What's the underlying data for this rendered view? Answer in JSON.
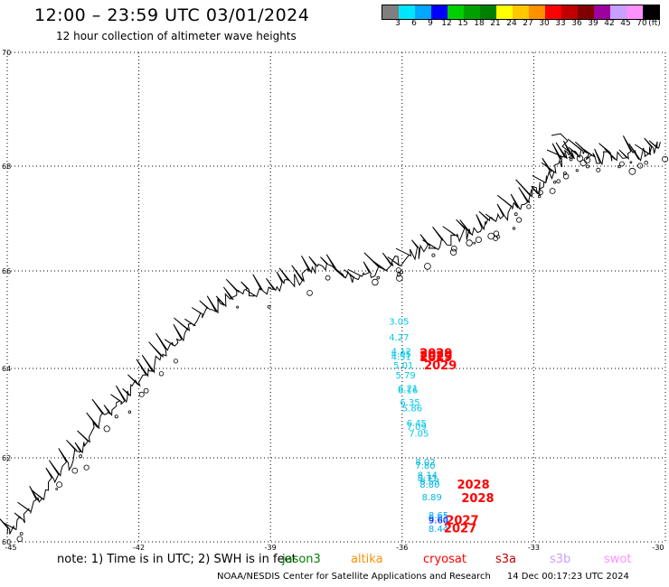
{
  "header": {
    "title": "12:00 – 23:59 UTC 03/01/2024",
    "subtitle": "12 hour collection of altimeter wave heights"
  },
  "color_scale": {
    "colors": [
      "#7f7f7f",
      "#00e5ff",
      "#00a8ff",
      "#0000ff",
      "#00d000",
      "#00a000",
      "#008000",
      "#ffff00",
      "#ffc800",
      "#ff9000",
      "#ff0000",
      "#c00000",
      "#800000",
      "#a000a0",
      "#c8a0ff",
      "#ff90ff",
      "#000000"
    ],
    "labels": [
      "3",
      "6",
      "9",
      "12",
      "15",
      "18",
      "21",
      "24",
      "27",
      "30",
      "33",
      "36",
      "39",
      "42",
      "45",
      "70",
      "(ft)"
    ]
  },
  "map": {
    "lat_labels": [
      "70",
      "68",
      "66",
      "64",
      "62",
      "60"
    ],
    "lon_labels": [
      "-45",
      "-42",
      "-39",
      "-36",
      "-33",
      "-30"
    ],
    "coast_color": "#000000",
    "observations": [
      {
        "text": "3.05",
        "lon": -36.3,
        "lat": 64.9,
        "color": "#00c8e8"
      },
      {
        "text": "4.27",
        "lon": -36.3,
        "lat": 64.57,
        "color": "#00c8e8"
      },
      {
        "text": "4.12",
        "lon": -36.25,
        "lat": 64.29,
        "color": "#00c8e8"
      },
      {
        "text": "4.05",
        "lon": -36.25,
        "lat": 64.23,
        "color": "#00c8e8"
      },
      {
        "text": "4.51",
        "lon": -36.25,
        "lat": 64.18,
        "color": "#00c8e8"
      },
      {
        "text": "5.01",
        "lon": -36.2,
        "lat": 64.0,
        "color": "#00c8e8"
      },
      {
        "text": "5.79",
        "lon": -36.15,
        "lat": 63.78,
        "color": "#00c8e8"
      },
      {
        "text": "6.21",
        "lon": -36.1,
        "lat": 63.48,
        "color": "#00c8e8"
      },
      {
        "text": "6.16",
        "lon": -36.1,
        "lat": 63.44,
        "color": "#00c8e8"
      },
      {
        "text": "6.35",
        "lon": -36.05,
        "lat": 63.17,
        "color": "#00c8e8"
      },
      {
        "text": "5.86",
        "lon": -36.0,
        "lat": 63.04,
        "color": "#00c8e8"
      },
      {
        "text": "6.45",
        "lon": -35.9,
        "lat": 62.71,
        "color": "#00c8e8"
      },
      {
        "text": "7.09",
        "lon": -35.9,
        "lat": 62.63,
        "color": "#00c8e8"
      },
      {
        "text": "7.05",
        "lon": -35.85,
        "lat": 62.47,
        "color": "#00c8e8"
      },
      {
        "text": "8.02",
        "lon": -35.7,
        "lat": 61.83,
        "color": "#00b8e0"
      },
      {
        "text": "7.80",
        "lon": -35.7,
        "lat": 61.74,
        "color": "#00b8e0"
      },
      {
        "text": "8.14",
        "lon": -35.65,
        "lat": 61.52,
        "color": "#00b8e0"
      },
      {
        "text": "8.71",
        "lon": -35.65,
        "lat": 61.44,
        "color": "#00b8e0"
      },
      {
        "text": "8.53",
        "lon": -35.6,
        "lat": 61.37,
        "color": "#00b8e0"
      },
      {
        "text": "8.80",
        "lon": -35.6,
        "lat": 61.29,
        "color": "#00b8e0"
      },
      {
        "text": "8.89",
        "lon": -35.55,
        "lat": 60.99,
        "color": "#00b8e0"
      },
      {
        "text": "8.65",
        "lon": -35.4,
        "lat": 60.56,
        "color": "#00a8ff"
      },
      {
        "text": "9.01",
        "lon": -35.4,
        "lat": 60.48,
        "color": "#00a8ff"
      },
      {
        "text": "9.60",
        "lon": -35.4,
        "lat": 60.44,
        "color": "#0000ff"
      },
      {
        "text": "8.44",
        "lon": -35.4,
        "lat": 60.24,
        "color": "#00a8ff"
      }
    ],
    "passes": [
      {
        "text": "2029",
        "lon": -35.6,
        "lat": 64.23,
        "color": "#ff0000"
      },
      {
        "text": "2029",
        "lon": -35.6,
        "lat": 64.18,
        "color": "#ff0000"
      },
      {
        "text": "2029",
        "lon": -35.6,
        "lat": 64.15,
        "color": "#ff0000"
      },
      {
        "text": "2029",
        "lon": -35.5,
        "lat": 63.98,
        "color": "#ff0000"
      },
      {
        "text": "2028",
        "lon": -34.75,
        "lat": 61.27,
        "color": "#ff0000"
      },
      {
        "text": "2028",
        "lon": -34.65,
        "lat": 60.95,
        "color": "#ff0000"
      },
      {
        "text": "2027",
        "lon": -35.0,
        "lat": 60.42,
        "color": "#ff0000"
      },
      {
        "text": "2027",
        "lon": -35.05,
        "lat": 60.23,
        "color": "#ff0000"
      }
    ]
  },
  "note": "note:  1) Time is in UTC;  2) SWH is in feet",
  "satellites": [
    {
      "name": "jason3",
      "color": "#008000"
    },
    {
      "name": "altika",
      "color": "#ff9000"
    },
    {
      "name": "cryosat",
      "color": "#ff0000"
    },
    {
      "name": "s3a",
      "color": "#c00000"
    },
    {
      "name": "s3b",
      "color": "#c8a0ff"
    },
    {
      "name": "swot",
      "color": "#ff90ff"
    }
  ],
  "footer": {
    "credit": "NOAA/NESDIS Center for Satellite Applications and Research",
    "timestamp": "14 Dec 00:17:23 UTC 2024"
  }
}
